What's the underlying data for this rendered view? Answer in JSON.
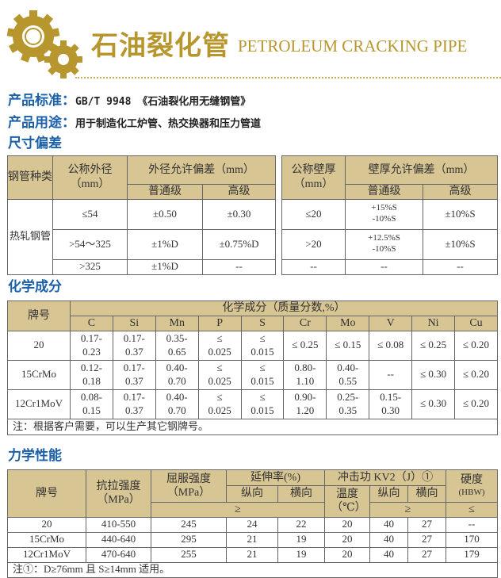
{
  "header": {
    "title_cn": "石油裂化管",
    "title_en": "PETROLEUM CRACKING PIPE",
    "icon": "gears-icon",
    "accent": "#b8962e"
  },
  "info": {
    "standard_label": "产品标准：",
    "standard_value": "GB/T 9948 《石油裂化用无缝钢管》",
    "usage_label": "产品用途：",
    "usage_value": "用于制造化工炉管、热交换器和压力管道"
  },
  "size_tolerance": {
    "heading": "尺寸偏差",
    "od_table": {
      "h_type": "钢管种类",
      "h_od": "公称外径（mm）",
      "h_dev": "外径允许偏差（mm）",
      "h_normal": "普通级",
      "h_high": "高级",
      "type": "热轧钢管",
      "rows": [
        [
          "≤54",
          "±0.50",
          "±0.30"
        ],
        [
          ">54～325",
          "±1%D",
          "±0.75%D"
        ],
        [
          ">325",
          "±1%D",
          "--"
        ]
      ]
    },
    "wt_table": {
      "h_wt": "公称壁厚（mm）",
      "h_dev": "壁厚允许偏差（mm）",
      "h_normal": "普通级",
      "h_high": "高级",
      "rows": [
        [
          "≤20",
          "+15%S -10%S",
          "±10%S"
        ],
        [
          ">20",
          "+12.5%S -10%S",
          "±10%S"
        ],
        [
          "--",
          "--",
          "--"
        ]
      ]
    }
  },
  "chemical": {
    "heading": "化学成分",
    "h_grade": "牌号",
    "h_comp": "化学成分（质量分数,%）",
    "elements": [
      "C",
      "Si",
      "Mn",
      "P",
      "S",
      "Cr",
      "Mo",
      "V",
      "Ni",
      "Cu"
    ],
    "rows": [
      {
        "grade": "20",
        "values": [
          "0.17-0.23",
          "0.17-0.37",
          "0.35-0.65",
          "≤ 0.025",
          "≤ 0.015",
          "≤ 0.25",
          "≤ 0.15",
          "≤ 0.08",
          "≤ 0.25",
          "≤ 0.20"
        ]
      },
      {
        "grade": "15CrMo",
        "values": [
          "0.12-0.18",
          "0.17-0.37",
          "0.40-0.70",
          "≤ 0.025",
          "≤ 0.015",
          "0.80-1.10",
          "0.40-0.55",
          "--",
          "≤ 0.30",
          "≤ 0.20"
        ]
      },
      {
        "grade": "12Cr1MoV",
        "values": [
          "0.08-0.15",
          "0.17-0.37",
          "0.40-0.70",
          "≤ 0.025",
          "≤ 0.015",
          "0.90-1.20",
          "0.25-0.35",
          "0.15-0.30",
          "≤ 0.30",
          "≤ 0.20"
        ]
      }
    ],
    "note": "注：根据客户需要，可以生产其它钢牌号。"
  },
  "mechanical": {
    "heading": "力学性能",
    "h_grade": "牌号",
    "h_tensile": "抗拉强度（MPa）",
    "h_yield": "屈服强度（MPa）",
    "h_elong": "延伸率(%)",
    "h_long": "纵向",
    "h_trans": "横向",
    "h_impact": "冲击功 KV2（J）①",
    "h_temp": "温度（℃）",
    "h_hard": "硬度",
    "h_hard_unit": "(HBW)",
    "ge": "≥",
    "le": "≤",
    "rows": [
      [
        "20",
        "410-550",
        "245",
        "24",
        "22",
        "20",
        "40",
        "27",
        "--"
      ],
      [
        "15CrMo",
        "440-640",
        "295",
        "21",
        "19",
        "20",
        "40",
        "27",
        "170"
      ],
      [
        "12Cr1MoV",
        "470-640",
        "255",
        "21",
        "19",
        "20",
        "40",
        "27",
        "179"
      ]
    ],
    "note": "注①：D≥76mm 且 S≥14mm 适用。"
  }
}
